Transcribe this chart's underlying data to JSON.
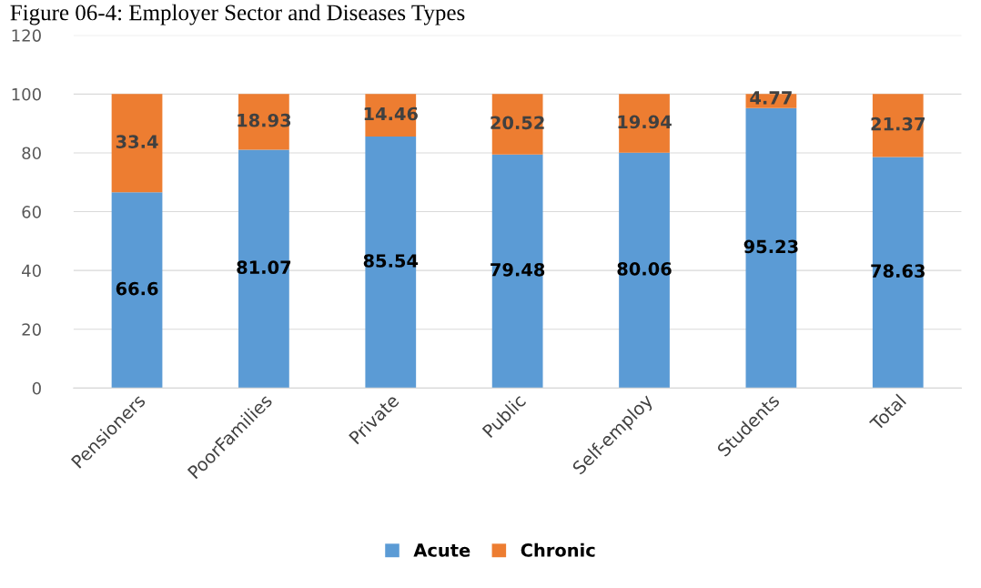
{
  "chart_data": {
    "type": "bar",
    "stacked": true,
    "title": "Figure 06-4: Employer Sector and Diseases Types",
    "categories": [
      "Pensioners",
      "PoorFamilies",
      "Private",
      "Public",
      "Self-employ",
      "Students",
      "Total"
    ],
    "series": [
      {
        "name": "Acute",
        "color": "#5b9bd5",
        "values": [
          66.6,
          81.07,
          85.54,
          79.48,
          80.06,
          95.23,
          78.63
        ]
      },
      {
        "name": "Chronic",
        "color": "#ed7d31",
        "values": [
          33.4,
          18.93,
          14.46,
          20.52,
          19.94,
          4.77,
          21.37
        ]
      }
    ],
    "ylim": [
      0,
      120
    ],
    "yticks": [
      0,
      20,
      40,
      60,
      80,
      100,
      120
    ],
    "grid": "y",
    "legend": "bottom",
    "data_labels": true
  }
}
